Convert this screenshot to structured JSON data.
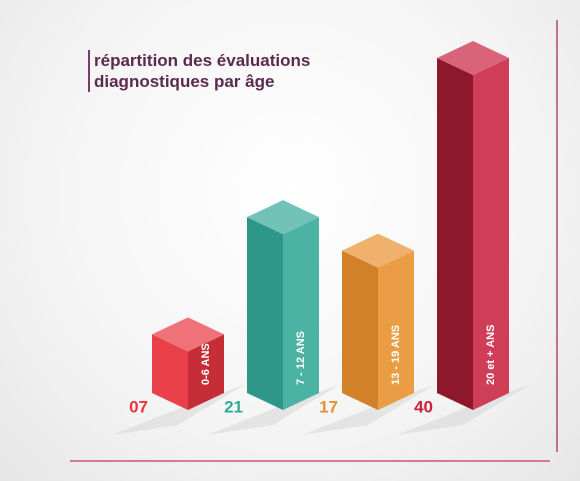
{
  "chart_data": {
    "type": "bar3d",
    "title": "répartition des évaluations diagnostiques par âge",
    "categories": [
      "0-6 ANS",
      "7 - 12 ANS",
      "13 - 19 ANS",
      "20 et + ANS"
    ],
    "values": [
      7,
      21,
      17,
      40
    ],
    "value_labels": [
      "07",
      "21",
      "17",
      "40"
    ],
    "colors": [
      "#e8363f",
      "#34a898",
      "#e8902c",
      "#c9223f"
    ]
  }
}
